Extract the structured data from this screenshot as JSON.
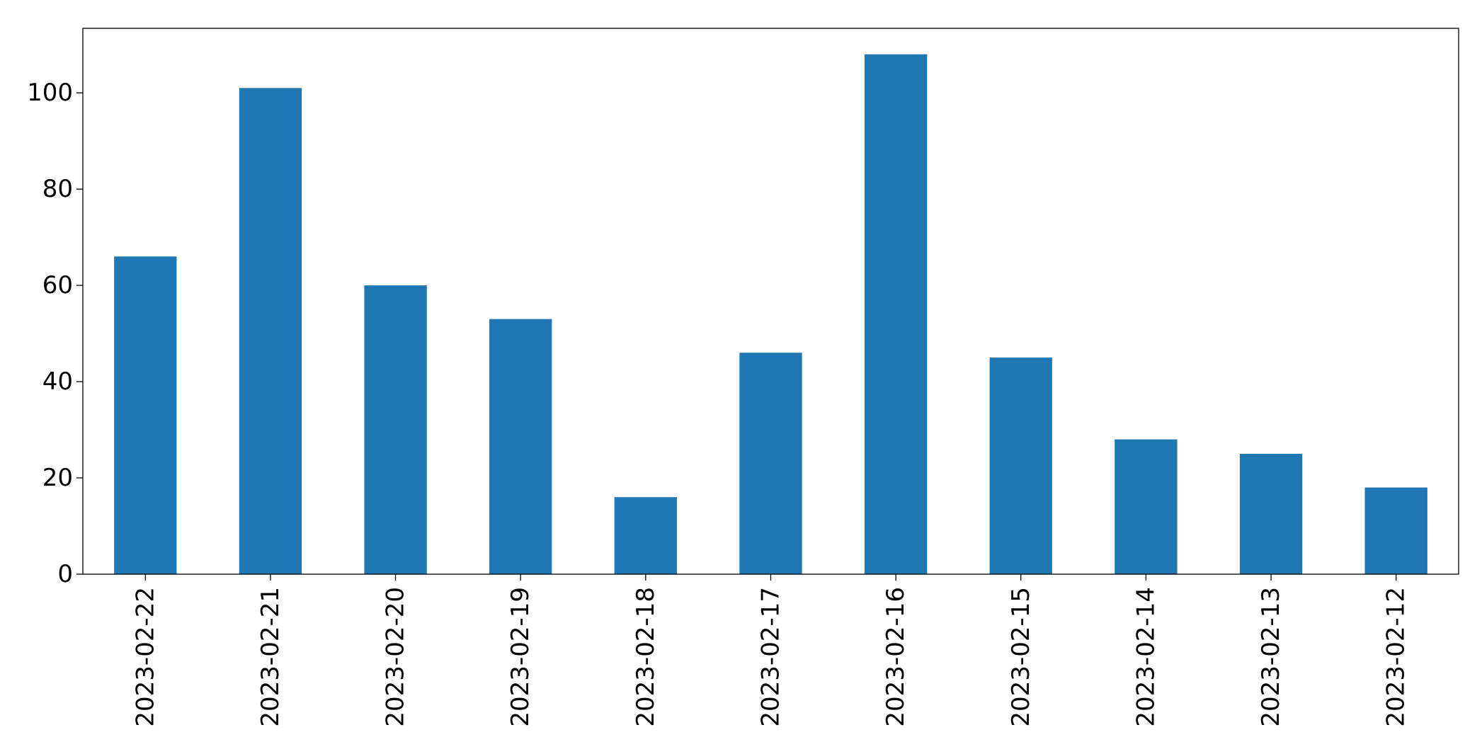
{
  "chart_data": {
    "type": "bar",
    "title": "",
    "xlabel": "",
    "ylabel": "",
    "categories": [
      "2023-02-22",
      "2023-02-21",
      "2023-02-20",
      "2023-02-19",
      "2023-02-18",
      "2023-02-17",
      "2023-02-16",
      "2023-02-15",
      "2023-02-14",
      "2023-02-13",
      "2023-02-12"
    ],
    "series": [
      {
        "values": [
          66,
          101,
          60,
          53,
          16,
          46,
          108,
          45,
          28,
          25,
          18
        ]
      }
    ],
    "ylim": [
      0,
      113.4
    ],
    "yticks": [
      0,
      20,
      40,
      60,
      80,
      100
    ],
    "grid": false,
    "legend": "none",
    "colors": {
      "bar": "#1f77b4",
      "axis": "#000000",
      "background": "#ffffff"
    }
  }
}
